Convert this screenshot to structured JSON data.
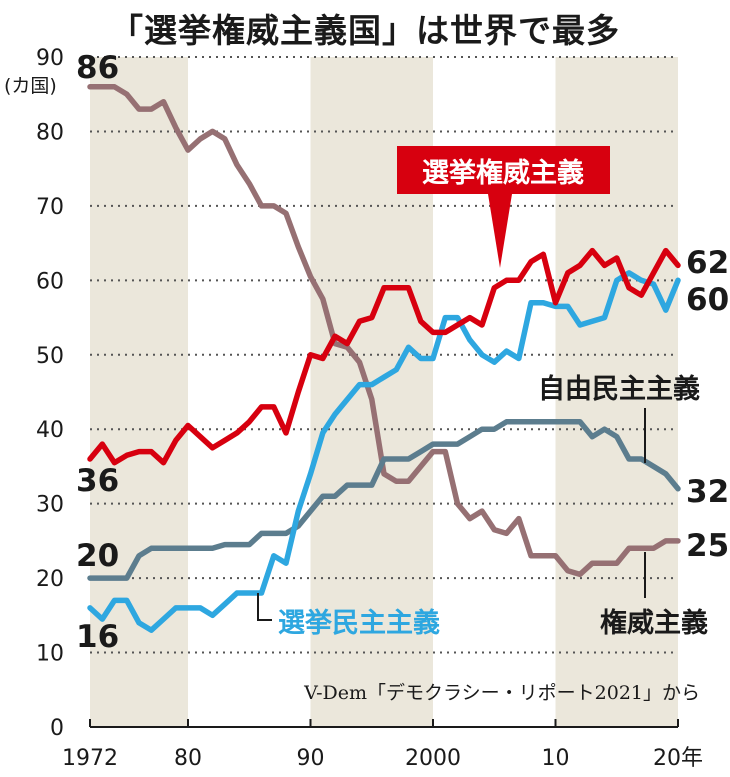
{
  "title": "「選挙権威主義国」は世界で最多",
  "source": "V-Dem「デモクラシー・リポート2021」から",
  "unit_label": "(カ国)",
  "chart_data": {
    "type": "line",
    "title": "「選挙権威主義国」は世界で最多",
    "ylabel": "(カ国)",
    "ylim": [
      0,
      90
    ],
    "xlim": [
      1972,
      2020
    ],
    "y_ticks": [
      0,
      10,
      20,
      30,
      40,
      50,
      60,
      70,
      80,
      90
    ],
    "x_ticks": [
      {
        "value": 1972,
        "label": "1972"
      },
      {
        "value": 1980,
        "label": "80"
      },
      {
        "value": 1990,
        "label": "90"
      },
      {
        "value": 2000,
        "label": "2000"
      },
      {
        "value": 2010,
        "label": "10"
      },
      {
        "value": 2020,
        "label": "20年"
      }
    ],
    "shaded_decades": [
      [
        1972,
        1980
      ],
      [
        1990,
        2000
      ],
      [
        2010,
        2020
      ]
    ],
    "grid": "dotted horizontal",
    "x": [
      1972,
      1973,
      1974,
      1975,
      1976,
      1977,
      1978,
      1979,
      1980,
      1981,
      1982,
      1983,
      1984,
      1985,
      1986,
      1987,
      1988,
      1989,
      1990,
      1991,
      1992,
      1993,
      1994,
      1995,
      1996,
      1997,
      1998,
      1999,
      2000,
      2001,
      2002,
      2003,
      2004,
      2005,
      2006,
      2007,
      2008,
      2009,
      2010,
      2011,
      2012,
      2013,
      2014,
      2015,
      2016,
      2017,
      2018,
      2019,
      2020
    ],
    "series": [
      {
        "name": "選挙権威主義",
        "color": "#d7000f",
        "end_label": "62",
        "start_label": "36",
        "values": [
          36,
          38,
          35.5,
          36.5,
          37,
          37,
          35.5,
          38.5,
          40.5,
          39,
          37.5,
          38.5,
          39.5,
          41,
          43,
          43,
          39.5,
          45,
          50,
          49.5,
          52.5,
          51.5,
          54.5,
          55,
          59,
          59,
          59,
          54.5,
          53,
          53,
          54,
          55,
          54,
          59,
          60,
          60,
          62.5,
          63.5,
          57,
          61,
          62,
          64,
          62,
          63,
          59,
          58,
          61,
          64,
          62
        ]
      },
      {
        "name": "選挙民主主義",
        "color": "#2ea7e0",
        "end_label": "60",
        "start_label": "16",
        "values": [
          16,
          14.5,
          17,
          17,
          14,
          13,
          14.5,
          16,
          16,
          16,
          15,
          16.5,
          18,
          18,
          18,
          23,
          22,
          29,
          34,
          39.5,
          42,
          44,
          46,
          46,
          47,
          48,
          51,
          49.5,
          49.5,
          55,
          55,
          52,
          50,
          49,
          50.5,
          49.5,
          57,
          57,
          56.5,
          56.5,
          54,
          54.5,
          55,
          60,
          61,
          60,
          59.5,
          56,
          60
        ]
      },
      {
        "name": "自由民主主義",
        "color": "#5c7d8e",
        "end_label": "32",
        "start_label": "20",
        "values": [
          20,
          20,
          20,
          20,
          23,
          24,
          24,
          24,
          24,
          24,
          24,
          24.5,
          24.5,
          24.5,
          26,
          26,
          26,
          27,
          29,
          31,
          31,
          32.5,
          32.5,
          32.5,
          36,
          36,
          36,
          37,
          38,
          38,
          38,
          39,
          40,
          40,
          41,
          41,
          41,
          41,
          41,
          41,
          41,
          39,
          40,
          39,
          36,
          36,
          35,
          34,
          32
        ]
      },
      {
        "name": "権威主義",
        "color": "#967073",
        "end_label": "25",
        "start_label": "86",
        "values": [
          86,
          86,
          86,
          85,
          83,
          83,
          84,
          80.5,
          77.5,
          79,
          80,
          79,
          75.5,
          73,
          70,
          70,
          69,
          64.5,
          60.5,
          57.5,
          51.5,
          51,
          49,
          44,
          34,
          33,
          33,
          35,
          37,
          37,
          30,
          28,
          29,
          26.5,
          26,
          28,
          23,
          23,
          23,
          21,
          20.5,
          22,
          22,
          22,
          24,
          24,
          24,
          25,
          25
        ]
      }
    ]
  }
}
